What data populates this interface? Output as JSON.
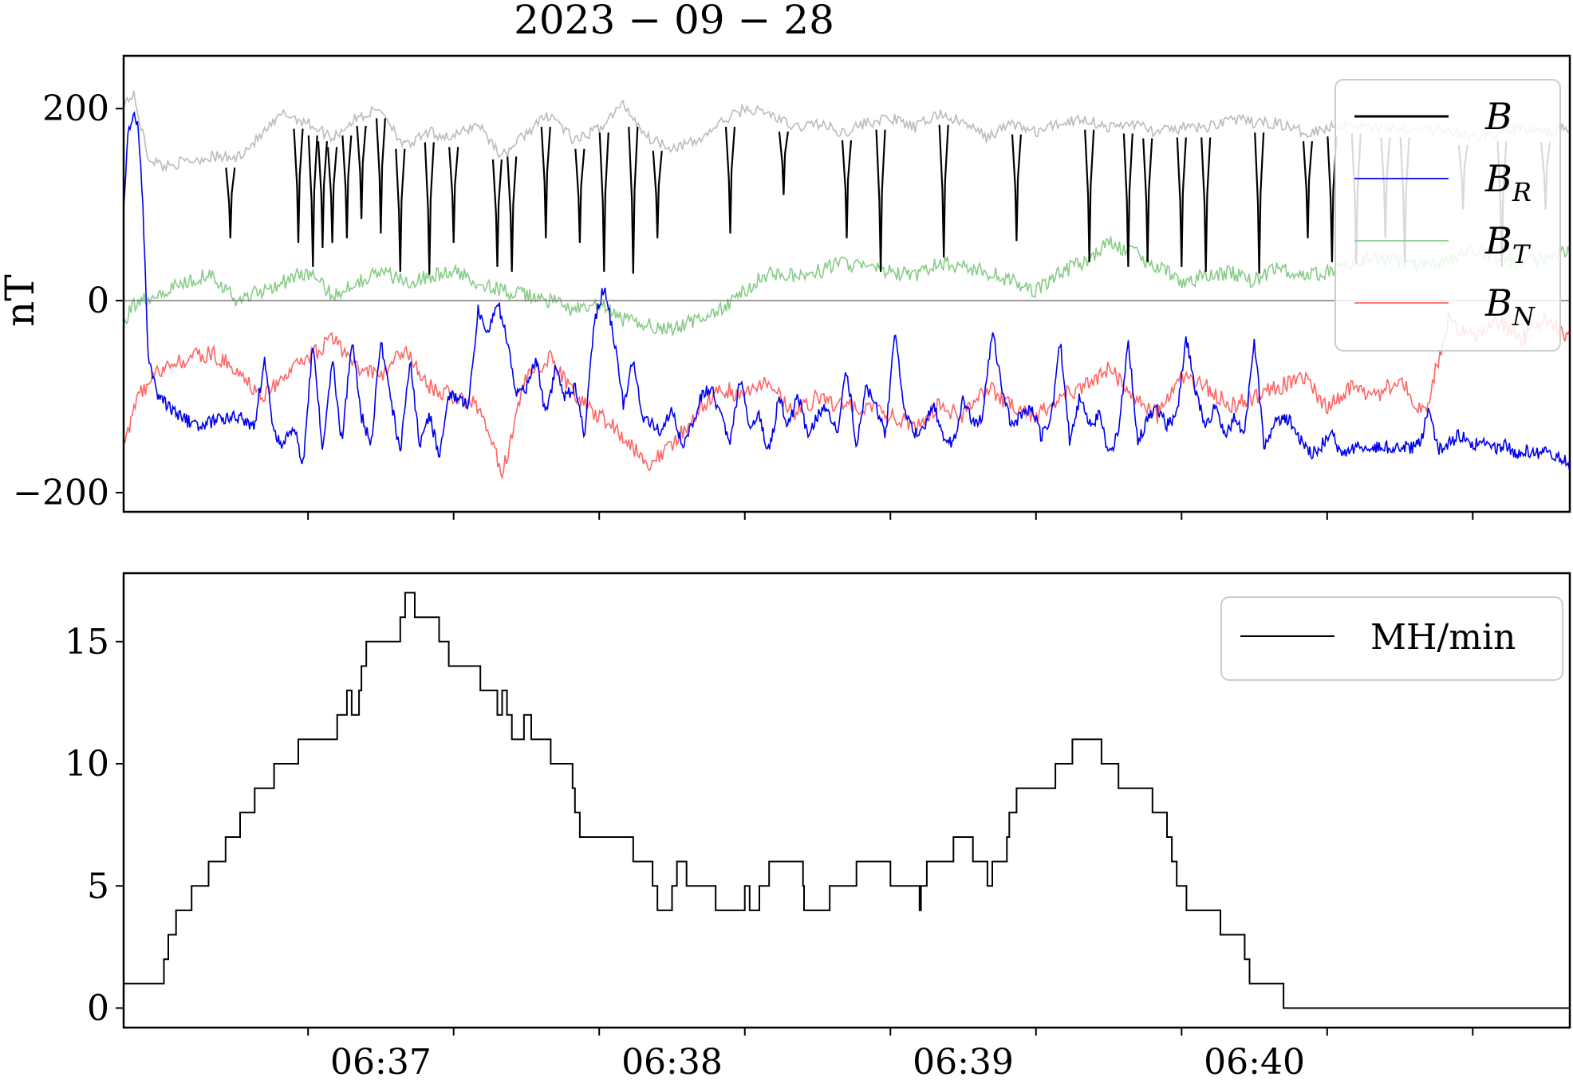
{
  "title": "2023 − 09 − 28",
  "panel1": {
    "ylabel": "nT",
    "yticks": [
      "200",
      "0",
      "−200"
    ]
  },
  "panel2": {
    "yticks": [
      "15",
      "10",
      "5",
      "0"
    ],
    "xticks": [
      "06:37",
      "06:38",
      "06:39",
      "06:40"
    ]
  },
  "legend1": [
    {
      "label": "B",
      "sub": "",
      "color": "#000000"
    },
    {
      "label": "B",
      "sub": "R",
      "color": "#0000ee"
    },
    {
      "label": "B",
      "sub": "T",
      "color": "#88cc88"
    },
    {
      "label": "B",
      "sub": "N",
      "color": "#ff6666"
    }
  ],
  "legend2": {
    "label": "MH/min",
    "color": "#000000"
  },
  "chart_data": [
    {
      "type": "line",
      "title": "2023 − 09 − 28",
      "ylabel": "nT",
      "ylim": [
        -220,
        255
      ],
      "xlim_seconds_after_0636": [
        7,
        305
      ],
      "time_axis_ticks": [
        "06:37",
        "06:38",
        "06:39",
        "06:40"
      ],
      "reference_line_y": 0,
      "legend_position": "top-right",
      "series": [
        {
          "name": "B",
          "color": "#000000",
          "envelope_color": "#bbbbbb",
          "x_seconds_after_0636": [
            7,
            9,
            12,
            15,
            20,
            25,
            30,
            35,
            40,
            45,
            50,
            55,
            60,
            65,
            70,
            75,
            80,
            85,
            90,
            95,
            100,
            105,
            110,
            115,
            120,
            125,
            130,
            135,
            140,
            145,
            150,
            155,
            160,
            165,
            170,
            175,
            180,
            185,
            190,
            195,
            200,
            205,
            210,
            215,
            220,
            225,
            230,
            235,
            240,
            245,
            250,
            255,
            260,
            265,
            270,
            275,
            280,
            285,
            290,
            295,
            300,
            305
          ],
          "y_envelope": [
            205,
            215,
            150,
            140,
            145,
            150,
            148,
            170,
            195,
            185,
            170,
            190,
            200,
            160,
            175,
            170,
            185,
            150,
            175,
            195,
            165,
            180,
            205,
            170,
            160,
            165,
            185,
            200,
            195,
            180,
            185,
            175,
            185,
            190,
            180,
            195,
            185,
            170,
            185,
            175,
            185,
            190,
            180,
            185,
            175,
            180,
            180,
            190,
            185,
            185,
            175,
            180,
            185,
            180,
            180,
            180,
            175,
            170,
            175,
            180,
            175,
            180
          ],
          "dip_x_seconds_after_0636": [
            29,
            43,
            46,
            48,
            50,
            53,
            56,
            60,
            64,
            70,
            75,
            84,
            87,
            94,
            101,
            106,
            112,
            117,
            132,
            143,
            156,
            163,
            176,
            191,
            206,
            214,
            218,
            225,
            230,
            241,
            251,
            256,
            261,
            267,
            271,
            283,
            291,
            300
          ],
          "dip_y_min": [
            65,
            60,
            35,
            55,
            60,
            65,
            85,
            70,
            30,
            27,
            60,
            35,
            30,
            65,
            60,
            30,
            28,
            65,
            70,
            110,
            65,
            30,
            45,
            62,
            40,
            35,
            40,
            35,
            30,
            28,
            65,
            40,
            38,
            65,
            40,
            95,
            35,
            95
          ]
        },
        {
          "name": "B_R",
          "color": "#0000ee",
          "x_seconds_after_0636": [
            7,
            8,
            9,
            10,
            11,
            12,
            14,
            18,
            22,
            26,
            30,
            34,
            36,
            38,
            40,
            42,
            44,
            46,
            48,
            50,
            52,
            54,
            56,
            58,
            60,
            62,
            64,
            66,
            68,
            70,
            72,
            74,
            76,
            78,
            80,
            82,
            84,
            86,
            88,
            90,
            92,
            94,
            96,
            98,
            100,
            102,
            104,
            106,
            108,
            110,
            112,
            114,
            116,
            118,
            120,
            122,
            124,
            126,
            128,
            130,
            132,
            134,
            136,
            138,
            140,
            142,
            144,
            146,
            148,
            150,
            152,
            154,
            156,
            158,
            160,
            162,
            164,
            166,
            168,
            170,
            172,
            174,
            176,
            178,
            180,
            182,
            184,
            186,
            188,
            190,
            192,
            194,
            196,
            198,
            200,
            202,
            204,
            206,
            208,
            210,
            212,
            214,
            216,
            218,
            220,
            222,
            224,
            226,
            228,
            230,
            232,
            234,
            236,
            238,
            240,
            242,
            244,
            246,
            248,
            250,
            252,
            254,
            256,
            258,
            260,
            262,
            264,
            266,
            268,
            270,
            272,
            274,
            276,
            278,
            280,
            282,
            284,
            286,
            288,
            290,
            292,
            294,
            296,
            298,
            300,
            302,
            305
          ],
          "y": [
            100,
            180,
            195,
            180,
            100,
            -60,
            -100,
            -120,
            -130,
            -125,
            -120,
            -130,
            -60,
            -140,
            -150,
            -130,
            -170,
            -40,
            -160,
            -60,
            -150,
            -40,
            -120,
            -150,
            -40,
            -100,
            -160,
            -60,
            -150,
            -120,
            -160,
            -100,
            -100,
            -110,
            -10,
            -30,
            0,
            -40,
            -100,
            -90,
            -60,
            -120,
            -70,
            -100,
            -90,
            -140,
            -20,
            15,
            -40,
            -110,
            -60,
            -120,
            -130,
            -140,
            -110,
            -150,
            -130,
            -100,
            -90,
            -120,
            -150,
            -80,
            -130,
            -120,
            -160,
            -100,
            -130,
            -100,
            -140,
            -120,
            -110,
            -140,
            -70,
            -150,
            -90,
            -110,
            -140,
            -30,
            -120,
            -140,
            -130,
            -110,
            -140,
            -150,
            -100,
            -130,
            -120,
            -30,
            -90,
            -130,
            -120,
            -110,
            -140,
            -130,
            -40,
            -150,
            -100,
            -130,
            -120,
            -160,
            -140,
            -40,
            -150,
            -120,
            -110,
            -130,
            -120,
            -40,
            -100,
            -130,
            -110,
            -140,
            -120,
            -140,
            -40,
            -150,
            -130,
            -120,
            -130,
            -150,
            -160,
            -150,
            -140,
            -160,
            -155,
            -150,
            -155,
            -150,
            -155,
            -150,
            -155,
            -150,
            -115,
            -155,
            -150,
            -140,
            -145,
            -150,
            -150,
            -155,
            -150,
            -160,
            -155,
            -160,
            -155,
            -160,
            -170
          ],
          "sampled": true
        },
        {
          "name": "B_T",
          "color": "#88cc88",
          "x_seconds_after_0636": [
            7,
            10,
            15,
            20,
            25,
            30,
            35,
            40,
            45,
            50,
            55,
            60,
            65,
            70,
            75,
            80,
            85,
            90,
            95,
            100,
            105,
            110,
            115,
            120,
            125,
            130,
            135,
            140,
            145,
            150,
            155,
            160,
            165,
            170,
            175,
            180,
            185,
            190,
            195,
            200,
            205,
            210,
            215,
            220,
            225,
            230,
            235,
            240,
            245,
            250,
            255,
            260,
            265,
            270,
            275,
            280,
            285,
            290,
            295,
            300,
            305
          ],
          "y": [
            -20,
            0,
            10,
            20,
            30,
            0,
            10,
            20,
            30,
            5,
            20,
            30,
            20,
            25,
            30,
            20,
            10,
            5,
            0,
            -10,
            -5,
            -20,
            -25,
            -30,
            -20,
            -10,
            10,
            30,
            25,
            30,
            40,
            35,
            30,
            25,
            40,
            35,
            30,
            20,
            10,
            30,
            40,
            60,
            50,
            35,
            20,
            25,
            30,
            20,
            35,
            25,
            30,
            40,
            45,
            40,
            35,
            40,
            55,
            45,
            40,
            45,
            55
          ],
          "sampled": true
        },
        {
          "name": "B_N",
          "color": "#ff6666",
          "x_seconds_after_0636": [
            7,
            10,
            15,
            20,
            25,
            30,
            35,
            40,
            45,
            50,
            55,
            60,
            65,
            70,
            75,
            80,
            85,
            90,
            95,
            100,
            105,
            110,
            115,
            120,
            125,
            130,
            135,
            140,
            145,
            150,
            155,
            160,
            165,
            170,
            175,
            180,
            185,
            190,
            195,
            200,
            205,
            210,
            215,
            220,
            225,
            230,
            235,
            240,
            245,
            250,
            255,
            260,
            265,
            270,
            275,
            280,
            285,
            290,
            295,
            300,
            305
          ],
          "y": [
            -150,
            -100,
            -70,
            -60,
            -55,
            -70,
            -100,
            -80,
            -60,
            -40,
            -70,
            -80,
            -50,
            -90,
            -100,
            -110,
            -180,
            -80,
            -60,
            -100,
            -120,
            -140,
            -170,
            -150,
            -120,
            -90,
            -100,
            -80,
            -120,
            -100,
            -110,
            -110,
            -120,
            -130,
            -110,
            -120,
            -90,
            -110,
            -120,
            -100,
            -90,
            -70,
            -100,
            -120,
            -80,
            -90,
            -110,
            -100,
            -90,
            -80,
            -110,
            -90,
            -100,
            -80,
            -120,
            -20,
            -40,
            -20,
            -40,
            -20,
            -40
          ],
          "sampled": true
        }
      ]
    },
    {
      "type": "line",
      "step": true,
      "ylim": [
        -0.8,
        17.8
      ],
      "xlim_seconds_after_0636": [
        7,
        305
      ],
      "legend_position": "top-right",
      "series": [
        {
          "name": "MH/min",
          "color": "#000000",
          "x_seconds_after_0636": [
            7,
            15.3,
            16.2,
            17.8,
            21,
            24.5,
            28,
            31,
            34,
            38,
            43,
            51,
            53,
            54,
            55.5,
            56,
            57,
            64,
            65,
            67,
            72,
            74,
            80.5,
            84,
            85,
            86,
            87,
            89.5,
            91,
            95,
            99.5,
            100,
            101,
            112,
            116,
            117,
            120,
            121,
            123,
            129,
            135,
            136,
            138,
            140,
            147,
            147.2,
            152.5,
            158,
            165,
            171,
            171.3,
            172.5,
            178,
            182,
            185,
            186,
            189,
            189.5,
            191,
            199,
            202.5,
            208.5,
            212,
            219,
            222,
            223,
            224,
            226,
            233,
            238,
            239,
            246,
            251,
            256,
            259,
            266,
            273,
            280,
            287,
            294,
            305
          ],
          "y": [
            1,
            2,
            3,
            4,
            5,
            6,
            7,
            8,
            9,
            10,
            11,
            12,
            13,
            12,
            13,
            14,
            15,
            16,
            17,
            16,
            15,
            14,
            13,
            12,
            13,
            12,
            11,
            12,
            11,
            10,
            9,
            8,
            7,
            6,
            5,
            4,
            5,
            6,
            5,
            4,
            5,
            4,
            5,
            6,
            5,
            4,
            5,
            6,
            5,
            4,
            5,
            6,
            7,
            6,
            5,
            6,
            7,
            8,
            9,
            10,
            11,
            10,
            9,
            8,
            7,
            6,
            5,
            4,
            3,
            2,
            1,
            0,
            0,
            0,
            0,
            0,
            0,
            0,
            0,
            0,
            0
          ],
          "sampled": true
        }
      ]
    }
  ]
}
